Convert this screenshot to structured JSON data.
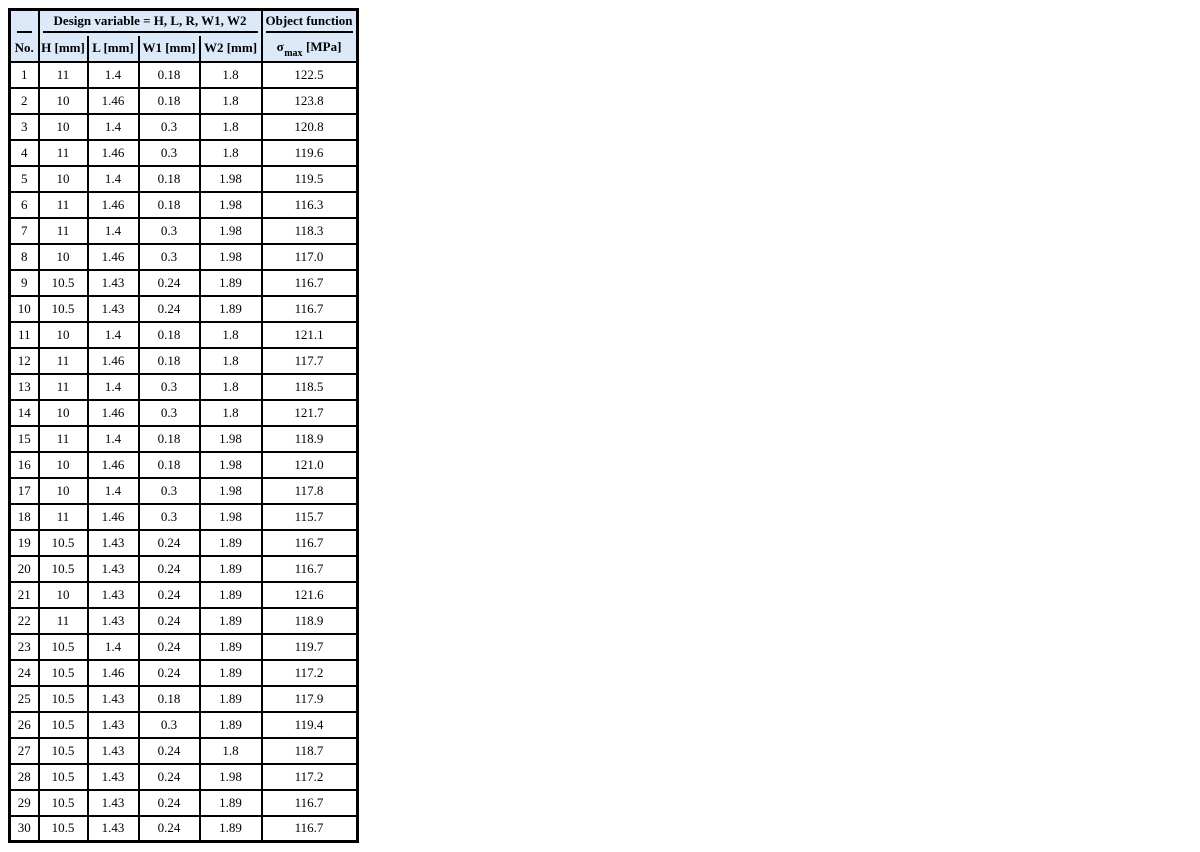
{
  "table": {
    "group_header": {
      "corner": "",
      "design_variable": "Design variable = H, L, R, W1, W2",
      "object_function": "Object function"
    },
    "header": {
      "no": "No.",
      "h": "H [mm]",
      "l": "L [mm]",
      "w1": "W1 [mm]",
      "w2": "W2 [mm]",
      "sigma_symbol": "σ",
      "sigma_sub": "max",
      "sigma_unit": "[MPa]"
    },
    "style": {
      "header_bg": "#dbe9f8",
      "border_color": "#000000"
    },
    "rows": [
      [
        "1",
        "11",
        "1.4",
        "0.18",
        "1.8",
        "122.5"
      ],
      [
        "2",
        "10",
        "1.46",
        "0.18",
        "1.8",
        "123.8"
      ],
      [
        "3",
        "10",
        "1.4",
        "0.3",
        "1.8",
        "120.8"
      ],
      [
        "4",
        "11",
        "1.46",
        "0.3",
        "1.8",
        "119.6"
      ],
      [
        "5",
        "10",
        "1.4",
        "0.18",
        "1.98",
        "119.5"
      ],
      [
        "6",
        "11",
        "1.46",
        "0.18",
        "1.98",
        "116.3"
      ],
      [
        "7",
        "11",
        "1.4",
        "0.3",
        "1.98",
        "118.3"
      ],
      [
        "8",
        "10",
        "1.46",
        "0.3",
        "1.98",
        "117.0"
      ],
      [
        "9",
        "10.5",
        "1.43",
        "0.24",
        "1.89",
        "116.7"
      ],
      [
        "10",
        "10.5",
        "1.43",
        "0.24",
        "1.89",
        "116.7"
      ],
      [
        "11",
        "10",
        "1.4",
        "0.18",
        "1.8",
        "121.1"
      ],
      [
        "12",
        "11",
        "1.46",
        "0.18",
        "1.8",
        "117.7"
      ],
      [
        "13",
        "11",
        "1.4",
        "0.3",
        "1.8",
        "118.5"
      ],
      [
        "14",
        "10",
        "1.46",
        "0.3",
        "1.8",
        "121.7"
      ],
      [
        "15",
        "11",
        "1.4",
        "0.18",
        "1.98",
        "118.9"
      ],
      [
        "16",
        "10",
        "1.46",
        "0.18",
        "1.98",
        "121.0"
      ],
      [
        "17",
        "10",
        "1.4",
        "0.3",
        "1.98",
        "117.8"
      ],
      [
        "18",
        "11",
        "1.46",
        "0.3",
        "1.98",
        "115.7"
      ],
      [
        "19",
        "10.5",
        "1.43",
        "0.24",
        "1.89",
        "116.7"
      ],
      [
        "20",
        "10.5",
        "1.43",
        "0.24",
        "1.89",
        "116.7"
      ],
      [
        "21",
        "10",
        "1.43",
        "0.24",
        "1.89",
        "121.6"
      ],
      [
        "22",
        "11",
        "1.43",
        "0.24",
        "1.89",
        "118.9"
      ],
      [
        "23",
        "10.5",
        "1.4",
        "0.24",
        "1.89",
        "119.7"
      ],
      [
        "24",
        "10.5",
        "1.46",
        "0.24",
        "1.89",
        "117.2"
      ],
      [
        "25",
        "10.5",
        "1.43",
        "0.18",
        "1.89",
        "117.9"
      ],
      [
        "26",
        "10.5",
        "1.43",
        "0.3",
        "1.89",
        "119.4"
      ],
      [
        "27",
        "10.5",
        "1.43",
        "0.24",
        "1.8",
        "118.7"
      ],
      [
        "28",
        "10.5",
        "1.43",
        "0.24",
        "1.98",
        "117.2"
      ],
      [
        "29",
        "10.5",
        "1.43",
        "0.24",
        "1.89",
        "116.7"
      ],
      [
        "30",
        "10.5",
        "1.43",
        "0.24",
        "1.89",
        "116.7"
      ]
    ]
  }
}
